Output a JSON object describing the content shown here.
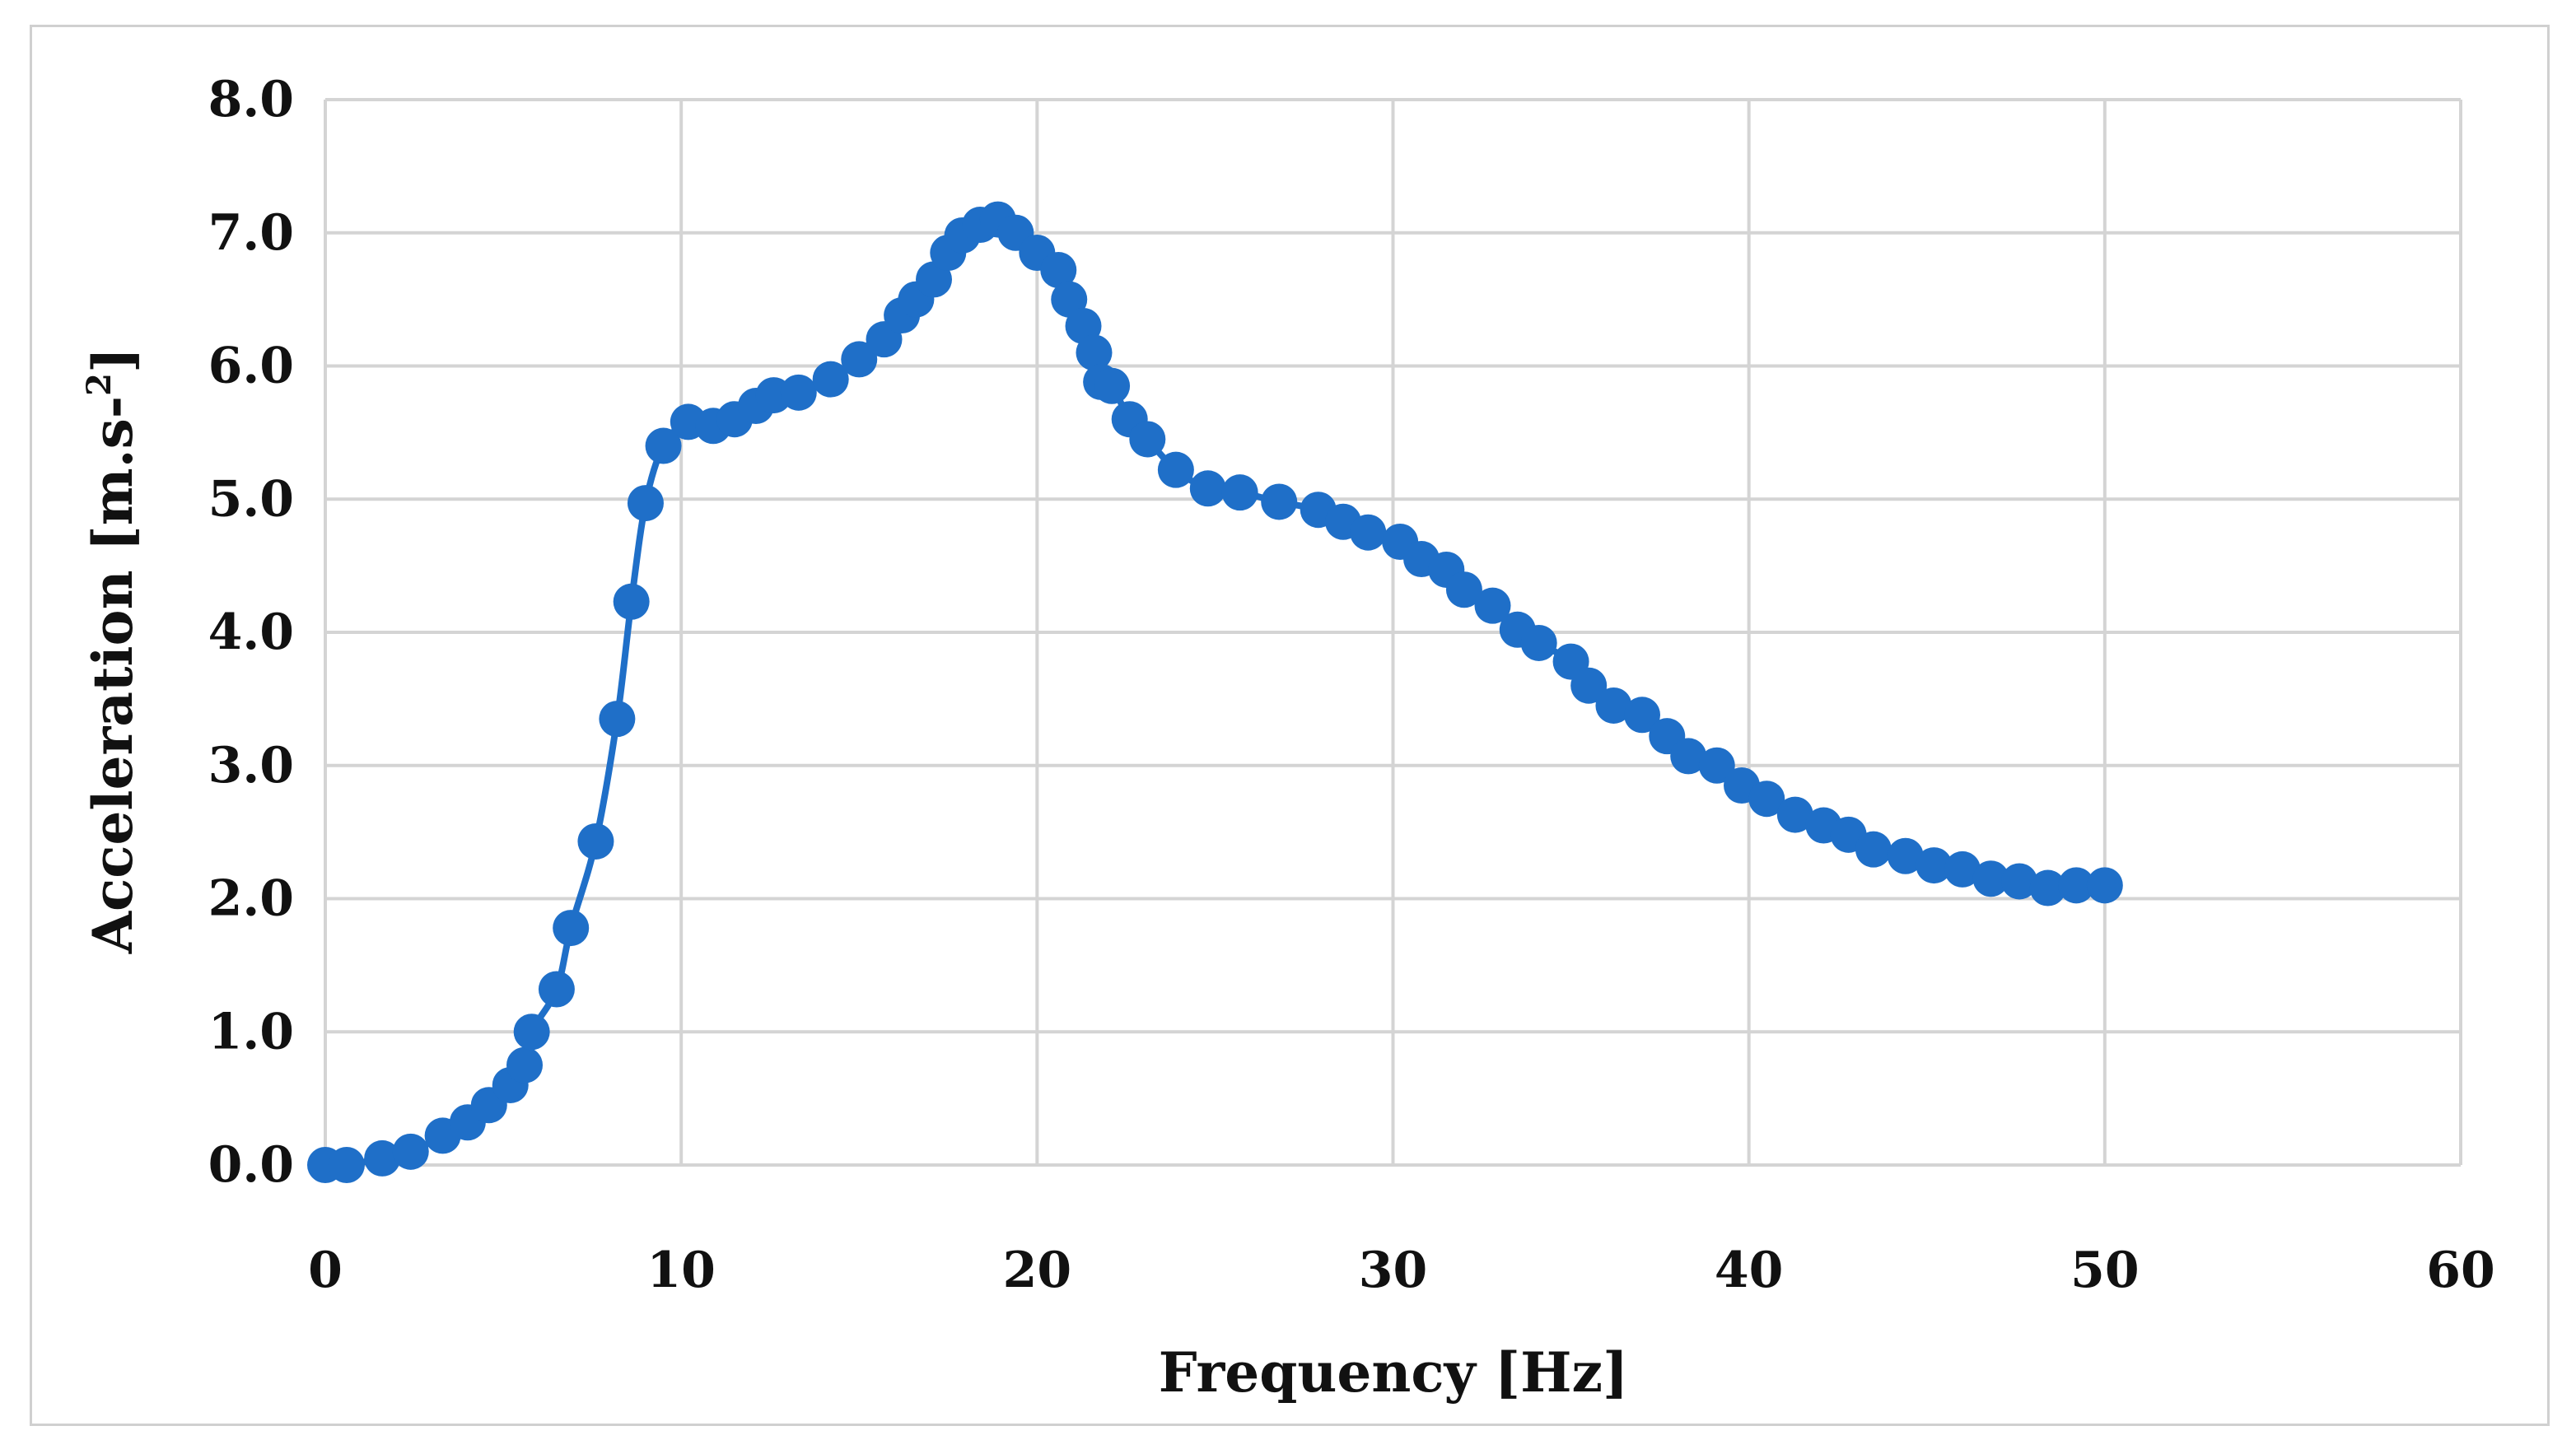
{
  "chart_data": {
    "type": "line",
    "title": "",
    "xlabel": "Frequency [Hz]",
    "ylabel": {
      "main": "Acceleration [m.s-",
      "superscript": "2",
      "close": "]"
    },
    "xlim": [
      0,
      60
    ],
    "ylim": [
      0,
      8
    ],
    "x_ticks": [
      "0",
      "10",
      "20",
      "30",
      "40",
      "50",
      "60"
    ],
    "y_ticks": [
      "0.0",
      "1.0",
      "2.0",
      "3.0",
      "4.0",
      "5.0",
      "6.0",
      "7.0",
      "8.0"
    ],
    "grid": true,
    "legend": "none",
    "marker": "circle",
    "color": "#1f6fc8",
    "grid_color": "#d4d4d4",
    "series": [
      {
        "x": [
          0,
          0.6,
          1.6,
          2.4,
          3.3,
          4.0,
          4.6,
          5.2,
          5.6,
          5.8,
          6.5,
          6.9,
          7.6,
          8.2,
          8.6,
          9.0,
          9.5,
          10.2,
          10.9,
          11.5,
          12.1,
          12.6,
          13.3,
          14.2,
          15.0,
          15.7,
          16.2,
          16.6,
          17.1,
          17.5,
          17.9,
          18.4,
          18.9,
          19.4,
          20.0,
          20.6,
          20.9,
          21.3,
          21.6,
          21.8,
          22.1,
          22.6,
          23.1,
          23.9,
          24.8,
          25.7,
          26.8,
          27.9,
          28.6,
          29.3,
          30.2,
          30.8,
          31.5,
          32.0,
          32.8,
          33.5,
          34.1,
          35.0,
          35.5,
          36.2,
          37.0,
          37.7,
          38.3,
          39.1,
          39.8,
          40.5,
          41.3,
          42.1,
          42.8,
          43.5,
          44.4,
          45.2,
          46.0,
          46.8,
          47.6,
          48.4,
          49.2,
          50.0
        ],
        "y": [
          0.0,
          0.0,
          0.05,
          0.1,
          0.22,
          0.32,
          0.45,
          0.6,
          0.75,
          1.0,
          1.32,
          1.78,
          2.43,
          3.35,
          4.23,
          4.97,
          5.4,
          5.58,
          5.55,
          5.6,
          5.7,
          5.78,
          5.8,
          5.9,
          6.05,
          6.2,
          6.38,
          6.5,
          6.65,
          6.85,
          6.98,
          7.06,
          7.1,
          7.0,
          6.85,
          6.72,
          6.5,
          6.3,
          6.1,
          5.88,
          5.85,
          5.6,
          5.45,
          5.22,
          5.08,
          5.05,
          4.98,
          4.92,
          4.83,
          4.75,
          4.68,
          4.55,
          4.47,
          4.32,
          4.2,
          4.02,
          3.92,
          3.78,
          3.6,
          3.45,
          3.38,
          3.22,
          3.07,
          3.0,
          2.85,
          2.75,
          2.63,
          2.55,
          2.48,
          2.37,
          2.32,
          2.25,
          2.22,
          2.15,
          2.13,
          2.08,
          2.1,
          2.1
        ]
      }
    ]
  }
}
